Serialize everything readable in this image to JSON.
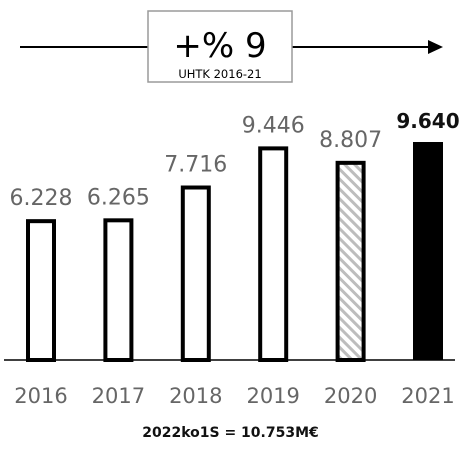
{
  "growth_box": {
    "value": "+% 9",
    "label": "UHTK 2016-21"
  },
  "chart_data": {
    "type": "bar",
    "categories": [
      "2016",
      "2017",
      "2018",
      "2019",
      "2020",
      "2021"
    ],
    "values": [
      6228,
      6265,
      7716,
      9446,
      8807,
      9640
    ],
    "value_labels": [
      "6.228",
      "6.265",
      "7.716",
      "9.446",
      "8.807",
      "9.640"
    ],
    "bar_styles": [
      "outline",
      "outline",
      "outline",
      "outline",
      "hatched",
      "solid"
    ],
    "title": "",
    "xlabel": "",
    "ylabel": "",
    "ylim": [
      0,
      9640
    ],
    "grid": false,
    "colors": {
      "bar_stroke": "#000000",
      "solid_fill": "#000000",
      "hatch": "#bdbdbd",
      "tick_label": "#666666",
      "value_label": "#666666"
    }
  },
  "footnote": "2022ko1S = 10.753M€"
}
